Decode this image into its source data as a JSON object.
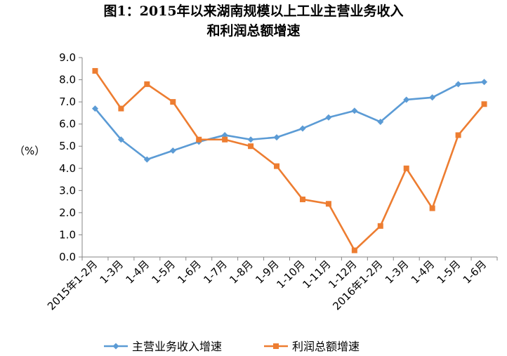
{
  "chart_data": {
    "type": "line",
    "title_line1": "图1：2015年以来湖南规模以上工业主营业务收入",
    "title_line2": "和利润总额增速",
    "ylabel": "（%）",
    "ylim": [
      0,
      9
    ],
    "ytick_step": 1,
    "grid": false,
    "legend_position": "bottom",
    "categories": [
      "2015年1-2月",
      "1-3月",
      "1-4月",
      "1-5月",
      "1-6月",
      "1-7月",
      "1-8月",
      "1-9月",
      "1-10月",
      "1-11月",
      "1-12月",
      "2016年1-2月",
      "1-3月",
      "1-4月",
      "1-5月",
      "1-6月"
    ],
    "series": [
      {
        "name": "主营业务收入增速",
        "color": "#5B9BD5",
        "marker": "diamond",
        "values": [
          6.7,
          5.3,
          4.4,
          4.8,
          5.2,
          5.5,
          5.3,
          5.4,
          5.8,
          6.3,
          6.6,
          6.1,
          7.1,
          7.2,
          7.8,
          7.9
        ]
      },
      {
        "name": "利润总额增速",
        "color": "#ED7D31",
        "marker": "square",
        "values": [
          8.4,
          6.7,
          7.8,
          7.0,
          5.3,
          5.3,
          5.0,
          4.1,
          2.6,
          2.4,
          0.3,
          1.4,
          4.0,
          2.2,
          5.5,
          6.9
        ]
      }
    ]
  }
}
